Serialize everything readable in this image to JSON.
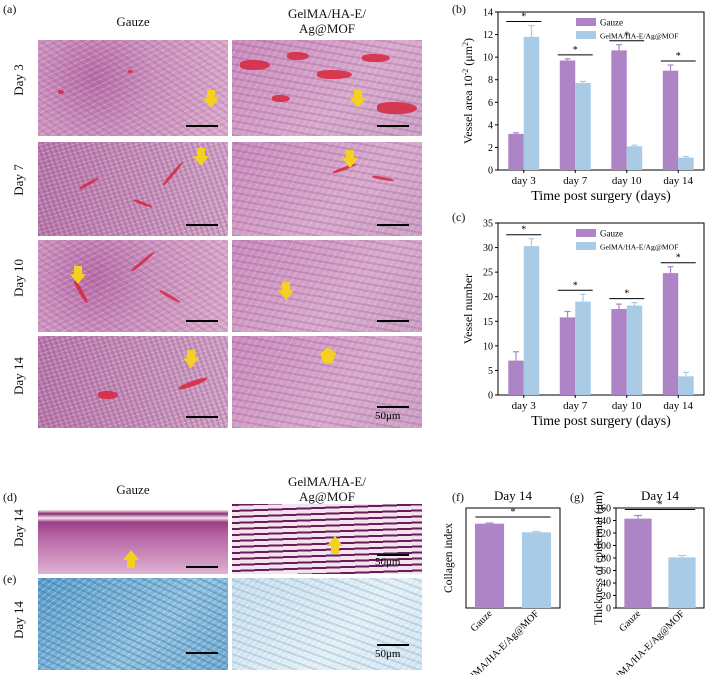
{
  "panels": {
    "a": "(a)",
    "b": "(b)",
    "c": "(c)",
    "d": "(d)",
    "e": "(e)",
    "f": "(f)",
    "g": "(g)"
  },
  "histology": {
    "col_gauze": "Gauze",
    "col_treated_line1": "GelMA/HA-E/",
    "col_treated_line2": "Ag@MOF",
    "rows": [
      "Day 3",
      "Day 7",
      "Day 10",
      "Day 14"
    ],
    "scale_label": "50μm",
    "skin_row": "Day 14",
    "collagen_row": "Day 14"
  },
  "colors": {
    "gauze": "#ad84c6",
    "treated": "#a9cbe5",
    "vessel": "#d7263d",
    "arrow": "#f4d020"
  },
  "chart_data": [
    {
      "id": "b",
      "type": "bar",
      "categories": [
        "day 3",
        "day 7",
        "day 10",
        "day 14"
      ],
      "series": [
        {
          "name": "Gauze",
          "values": [
            3.2,
            9.7,
            10.6,
            8.8
          ],
          "errors": [
            0.1,
            0.15,
            0.5,
            0.5
          ]
        },
        {
          "name": "GelMA/HA-E/Ag@MOF",
          "values": [
            11.8,
            7.7,
            2.1,
            1.1
          ],
          "errors": [
            1.0,
            0.15,
            0.1,
            0.1
          ]
        }
      ],
      "xlabel": "Time post surgery (days)",
      "ylabel": "Vessel area 10",
      "ylabel_sup": "-2",
      "ylabel_unit": " (μm",
      "ylabel_unit_sup": "2",
      "ylabel_close": ")",
      "ylim": [
        0,
        14
      ],
      "yticks": [
        0,
        2,
        4,
        6,
        8,
        10,
        12,
        14
      ],
      "significance": "*",
      "legend": "top-right"
    },
    {
      "id": "c",
      "type": "bar",
      "categories": [
        "day 3",
        "day 7",
        "day 10",
        "day 14"
      ],
      "series": [
        {
          "name": "Gauze",
          "values": [
            7.0,
            15.8,
            17.5,
            24.8
          ],
          "errors": [
            1.8,
            1.2,
            1.0,
            1.3
          ]
        },
        {
          "name": "GelMA/HA-E/Ag@MOF",
          "values": [
            30.3,
            19.0,
            18.2,
            3.8
          ],
          "errors": [
            1.5,
            1.5,
            0.6,
            0.8
          ]
        }
      ],
      "xlabel": "Time post surgery (days)",
      "ylabel": "Vessel number",
      "ylim": [
        0,
        35
      ],
      "yticks": [
        0,
        5,
        10,
        15,
        20,
        25,
        30,
        35
      ],
      "significance": "*",
      "legend": "top-right"
    },
    {
      "id": "f",
      "type": "bar",
      "title": "Day 14",
      "categories": [
        "Gauze",
        "GelMA/HA-E/Ag@MOF"
      ],
      "values": [
        0.59,
        0.53
      ],
      "errors": [
        0.005,
        0.005
      ],
      "ylabel": "Collagen index",
      "ylim": [
        0,
        0.7
      ],
      "significance": "*"
    },
    {
      "id": "g",
      "type": "bar",
      "title": "Day 14",
      "categories": [
        "Gauze",
        "GelMA/HA-E/Ag@MOF"
      ],
      "values": [
        143,
        81
      ],
      "errors": [
        5,
        3
      ],
      "ylabel": "Thickness of epidermal (μm)",
      "ylim": [
        0,
        160
      ],
      "yticks": [
        0,
        20,
        40,
        60,
        80,
        100,
        120,
        140,
        160
      ],
      "significance": "*"
    }
  ]
}
